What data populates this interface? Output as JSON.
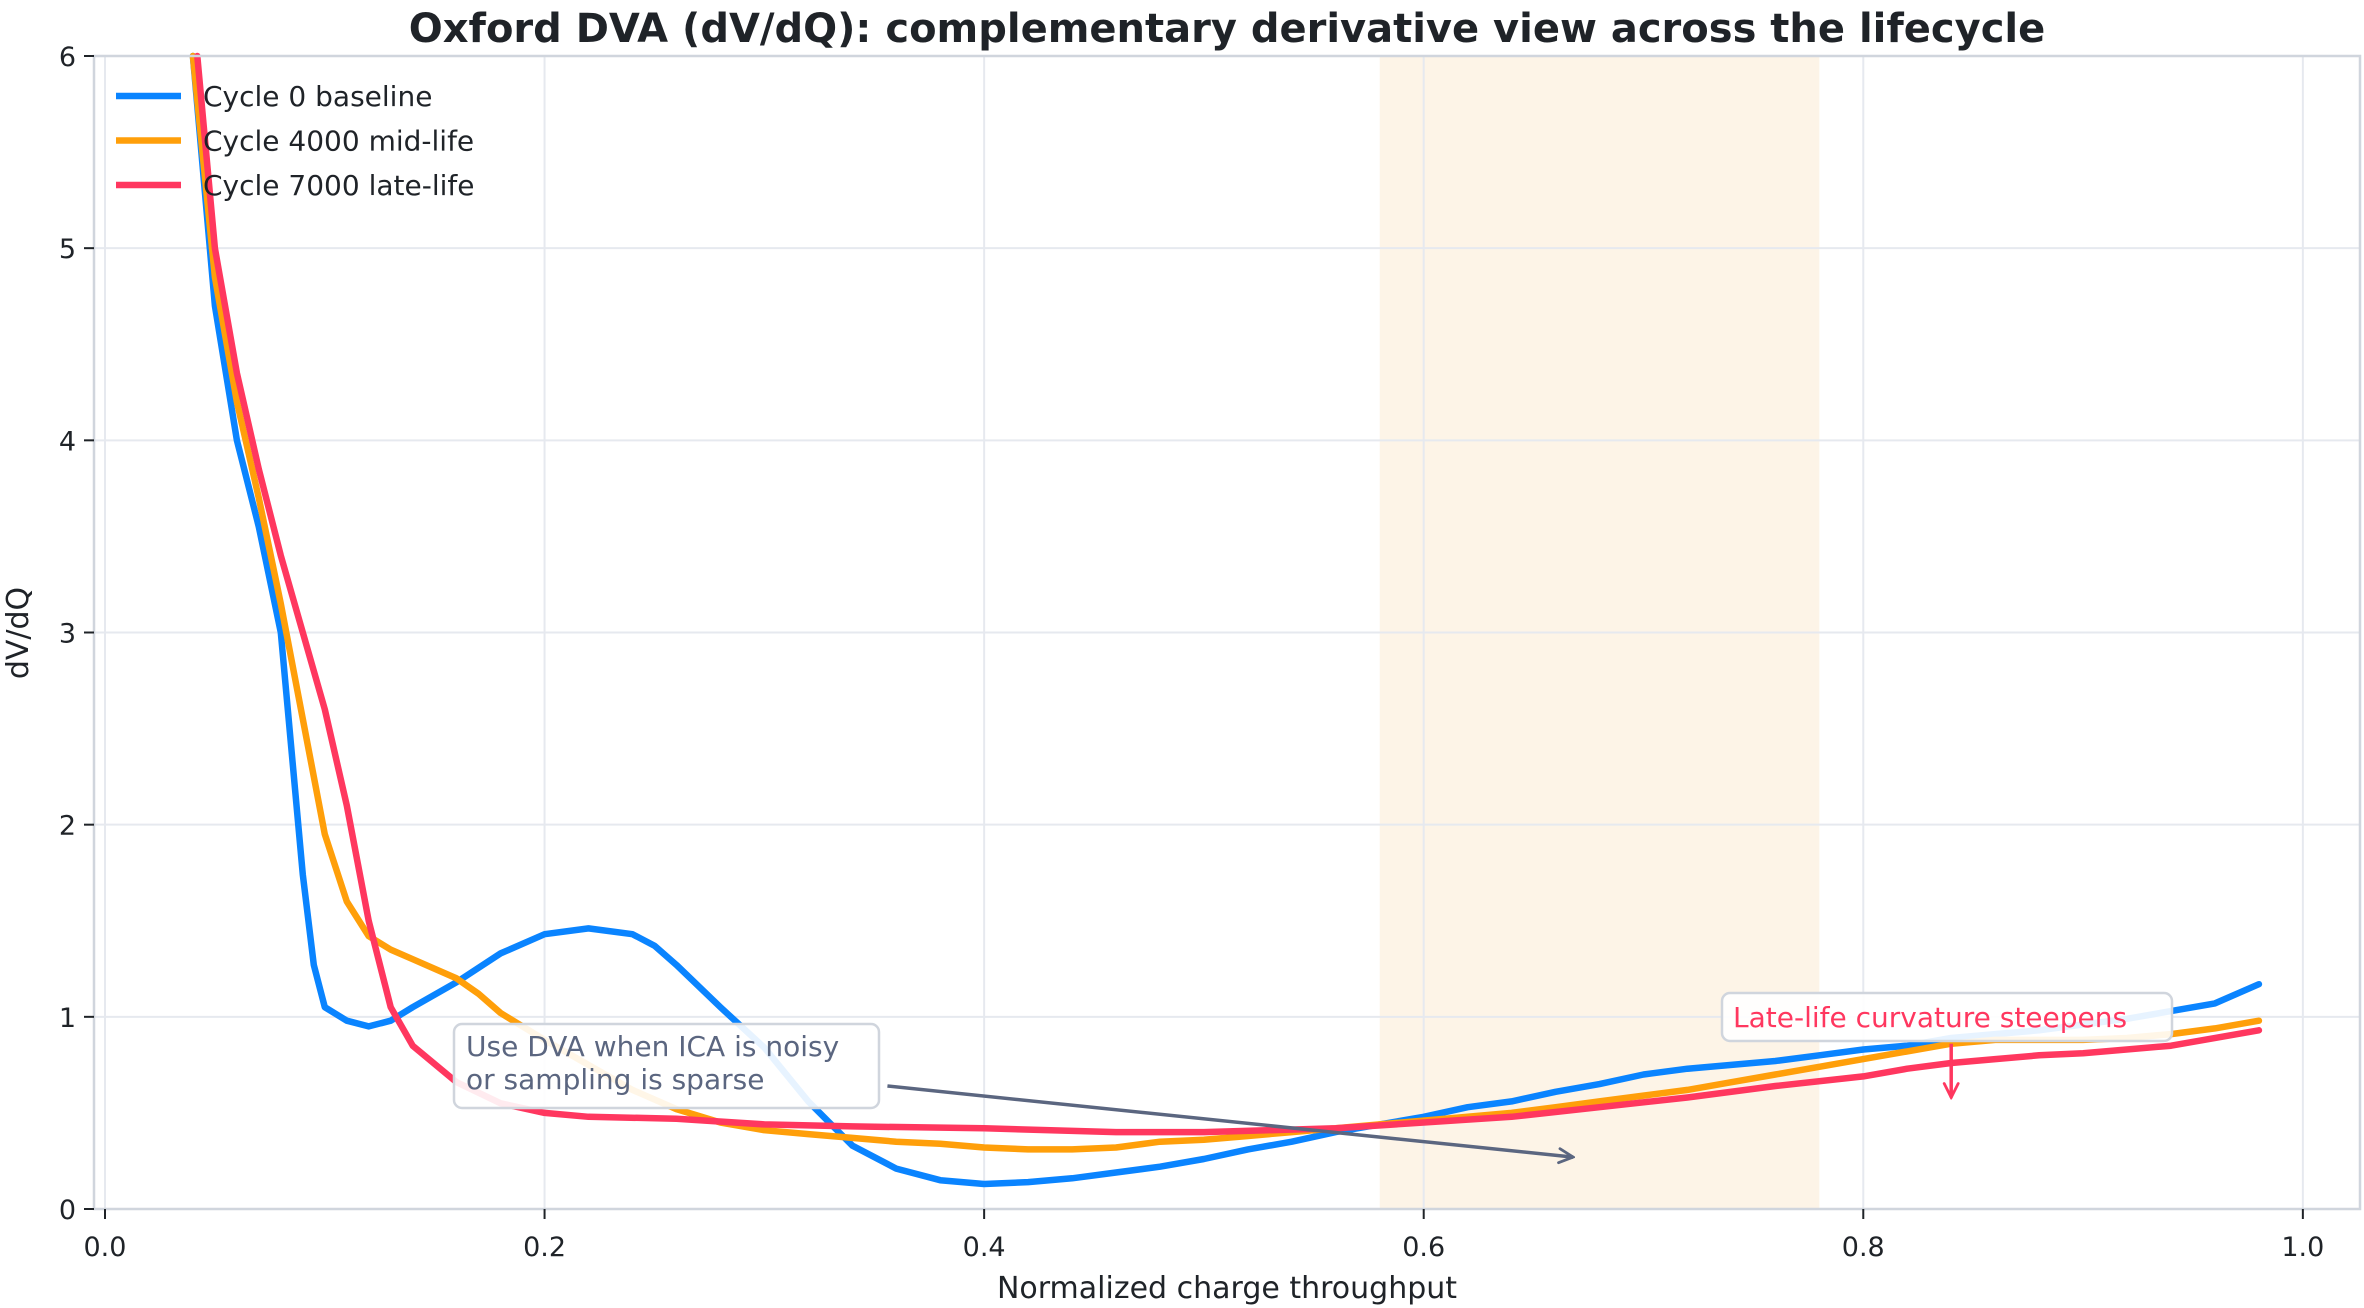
{
  "chart_data": {
    "type": "line",
    "title": "Oxford DVA (dV/dQ): complementary derivative view across the lifecycle",
    "xlabel": "Normalized charge throughput",
    "ylabel": "dV/dQ",
    "xlim": [
      -0.005,
      1.026
    ],
    "ylim": [
      0,
      6
    ],
    "xticks": [
      "0.0",
      "0.2",
      "0.4",
      "0.6",
      "0.8",
      "1.0"
    ],
    "yticks": [
      "0",
      "1",
      "2",
      "3",
      "4",
      "5",
      "6"
    ],
    "grid": true,
    "legend_position": "top-left",
    "shaded_region": {
      "x": [
        0.58,
        0.78
      ],
      "color": "#fdf4e7"
    },
    "series": [
      {
        "name": "Cycle 0 baseline",
        "color": "#0a84ff",
        "x": [
          0.04,
          0.05,
          0.06,
          0.07,
          0.08,
          0.085,
          0.09,
          0.095,
          0.1,
          0.11,
          0.12,
          0.13,
          0.14,
          0.16,
          0.18,
          0.2,
          0.22,
          0.24,
          0.25,
          0.26,
          0.28,
          0.3,
          0.32,
          0.34,
          0.36,
          0.38,
          0.4,
          0.42,
          0.44,
          0.46,
          0.48,
          0.5,
          0.52,
          0.54,
          0.56,
          0.58,
          0.6,
          0.62,
          0.64,
          0.66,
          0.68,
          0.7,
          0.72,
          0.74,
          0.76,
          0.78,
          0.8,
          0.82,
          0.84,
          0.86,
          0.88,
          0.9,
          0.92,
          0.94,
          0.96,
          0.98
        ],
        "y": [
          6.0,
          4.7,
          4.0,
          3.55,
          3.0,
          2.37,
          1.74,
          1.27,
          1.05,
          0.98,
          0.95,
          0.98,
          1.05,
          1.18,
          1.33,
          1.43,
          1.46,
          1.43,
          1.37,
          1.27,
          1.05,
          0.84,
          0.56,
          0.33,
          0.21,
          0.15,
          0.13,
          0.14,
          0.16,
          0.19,
          0.22,
          0.26,
          0.31,
          0.35,
          0.4,
          0.44,
          0.48,
          0.53,
          0.56,
          0.61,
          0.65,
          0.7,
          0.73,
          0.75,
          0.77,
          0.8,
          0.83,
          0.85,
          0.89,
          0.91,
          0.93,
          0.96,
          0.99,
          1.03,
          1.07,
          1.17
        ]
      },
      {
        "name": "Cycle 4000 mid-life",
        "color": "#ff9f0a",
        "x": [
          0.04,
          0.05,
          0.06,
          0.07,
          0.08,
          0.09,
          0.1,
          0.11,
          0.12,
          0.13,
          0.14,
          0.16,
          0.17,
          0.18,
          0.2,
          0.22,
          0.24,
          0.26,
          0.28,
          0.3,
          0.32,
          0.34,
          0.36,
          0.38,
          0.4,
          0.42,
          0.44,
          0.46,
          0.48,
          0.5,
          0.52,
          0.54,
          0.56,
          0.58,
          0.6,
          0.62,
          0.64,
          0.66,
          0.68,
          0.7,
          0.72,
          0.74,
          0.76,
          0.78,
          0.8,
          0.82,
          0.84,
          0.86,
          0.88,
          0.9,
          0.92,
          0.94,
          0.96,
          0.98
        ],
        "y": [
          6.0,
          4.85,
          4.2,
          3.7,
          3.15,
          2.55,
          1.95,
          1.6,
          1.42,
          1.35,
          1.3,
          1.2,
          1.12,
          1.02,
          0.88,
          0.75,
          0.62,
          0.52,
          0.45,
          0.41,
          0.39,
          0.37,
          0.35,
          0.34,
          0.32,
          0.31,
          0.31,
          0.32,
          0.35,
          0.36,
          0.38,
          0.4,
          0.42,
          0.44,
          0.46,
          0.48,
          0.5,
          0.53,
          0.56,
          0.59,
          0.62,
          0.66,
          0.7,
          0.74,
          0.78,
          0.82,
          0.86,
          0.88,
          0.88,
          0.88,
          0.89,
          0.91,
          0.94,
          0.98
        ]
      },
      {
        "name": "Cycle 7000 late-life",
        "color": "#ff375f",
        "x": [
          0.042,
          0.05,
          0.06,
          0.07,
          0.08,
          0.09,
          0.1,
          0.11,
          0.12,
          0.13,
          0.14,
          0.16,
          0.18,
          0.2,
          0.22,
          0.26,
          0.3,
          0.34,
          0.4,
          0.46,
          0.5,
          0.56,
          0.6,
          0.64,
          0.68,
          0.72,
          0.76,
          0.8,
          0.82,
          0.84,
          0.86,
          0.88,
          0.9,
          0.94,
          0.98
        ],
        "y": [
          6.0,
          5.0,
          4.35,
          3.85,
          3.4,
          3.0,
          2.6,
          2.1,
          1.5,
          1.05,
          0.85,
          0.66,
          0.55,
          0.5,
          0.48,
          0.47,
          0.44,
          0.43,
          0.42,
          0.4,
          0.4,
          0.42,
          0.45,
          0.48,
          0.53,
          0.58,
          0.64,
          0.69,
          0.73,
          0.76,
          0.78,
          0.8,
          0.81,
          0.85,
          0.93
        ]
      }
    ],
    "annotations": [
      {
        "text_lines": [
          "Use DVA when ICA is noisy",
          "or sampling is sparse"
        ],
        "color": "#5b6680",
        "arrow_from": [
          0.356,
          0.64
        ],
        "arrow_to": [
          0.668,
          0.27
        ]
      },
      {
        "text_lines": [
          "Late-life curvature steepens"
        ],
        "color": "#ff375f",
        "arrow_from": [
          0.84,
          0.86
        ],
        "arrow_to": [
          0.84,
          0.58
        ]
      }
    ]
  }
}
